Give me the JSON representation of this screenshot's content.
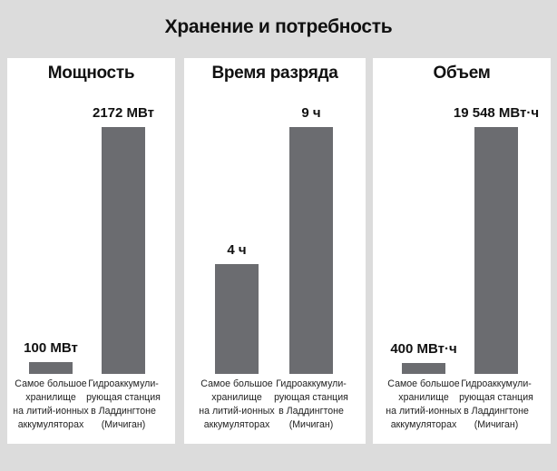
{
  "title": "Хранение и потребность",
  "chart_data": [
    {
      "type": "bar",
      "title": "Мощность",
      "categories": [
        "Самое большое\nхранилище\nна литий-ионных\nаккумуляторах",
        "Гидроаккумули-\nрующая станция\nв Ладдингтоне\n(Мичиган)"
      ],
      "values": [
        100,
        2172
      ],
      "data_labels": [
        "100 МВт",
        "2172 МВт"
      ],
      "ylim": [
        0,
        2172
      ]
    },
    {
      "type": "bar",
      "title": "Время разряда",
      "categories": [
        "Самое большое\nхранилище\nна литий-ионных\nаккумуляторах",
        "Гидроаккумули-\nрующая станция\nв Ладдингтоне\n(Мичиган)"
      ],
      "values": [
        4,
        9
      ],
      "data_labels": [
        "4 ч",
        "9 ч"
      ],
      "ylim": [
        0,
        9
      ]
    },
    {
      "type": "bar",
      "title": "Объем",
      "categories": [
        "Самое большое\nхранилище\nна литий-ионных\nаккумуляторах",
        "Гидроаккумули-\nрующая станция\nв Ладдингтоне\n(Мичиган)"
      ],
      "values": [
        400,
        19548
      ],
      "data_labels": [
        "400 МВт·ч",
        "19 548 МВт·ч"
      ],
      "ylim": [
        0,
        19548
      ]
    }
  ],
  "colors": {
    "bar": "#6b6c70",
    "panel": "#ffffff",
    "background": "#dcdcdc"
  }
}
